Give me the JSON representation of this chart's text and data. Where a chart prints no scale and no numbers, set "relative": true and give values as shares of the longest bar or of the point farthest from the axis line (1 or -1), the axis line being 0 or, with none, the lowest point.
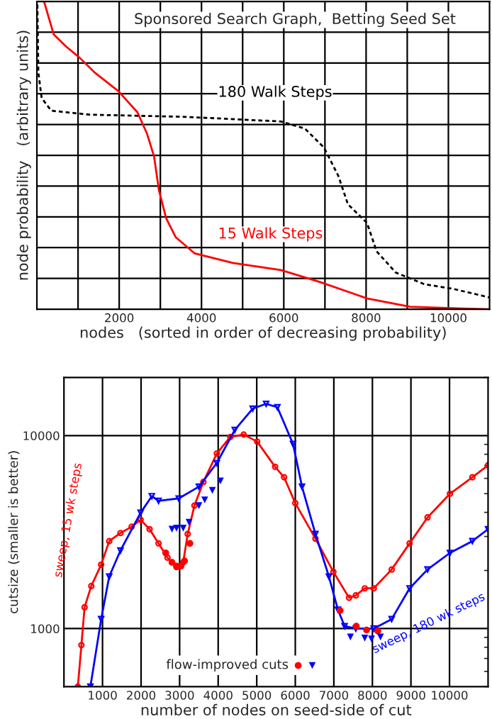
{
  "chart_data": [
    {
      "type": "line",
      "title": "Sponsored Search Graph,  Betting Seed Set",
      "xlabel": "nodes   (sorted in order of decreasing probability)",
      "ylabel": "node probability   (arbitrary units)",
      "relative": true,
      "grid": true,
      "legend": false,
      "xlim": [
        0,
        11000
      ],
      "xticks": [
        {
          "value": 1000,
          "label": null
        },
        2000,
        {
          "value": 3000,
          "label": null
        },
        4000,
        {
          "value": 5000,
          "label": null
        },
        6000,
        {
          "value": 7000,
          "label": null
        },
        8000,
        {
          "value": 9000,
          "label": null
        },
        10000
      ],
      "series": [
        {
          "name": "15 Walk Steps",
          "color": "#ff0000",
          "line_style": "solid",
          "x": [
            174,
            407,
            698,
            1047,
            1395,
            1977,
            2442,
            2674,
            2849,
            2965,
            3140,
            3372,
            3837,
            4767,
            5930,
            6860,
            8023,
            9070,
            10349,
            11000
          ],
          "values": [
            1.0,
            0.893,
            0.855,
            0.816,
            0.77,
            0.709,
            0.64,
            0.571,
            0.495,
            0.387,
            0.296,
            0.234,
            0.181,
            0.15,
            0.127,
            0.089,
            0.035,
            0.008,
            0.002,
            0.0
          ]
        },
        {
          "name": "180 Walk Steps",
          "color": "#000000",
          "line_style": "dashed",
          "x": [
            12,
            35,
            116,
            349,
            1279,
            3605,
            5930,
            6512,
            6977,
            7326,
            7558,
            8023,
            8256,
            8721,
            9419,
            10116,
            11000
          ],
          "values": [
            0.99,
            0.77,
            0.686,
            0.645,
            0.632,
            0.625,
            0.61,
            0.587,
            0.525,
            0.433,
            0.341,
            0.28,
            0.188,
            0.119,
            0.081,
            0.066,
            0.038
          ]
        }
      ]
    },
    {
      "type": "line",
      "xlabel": "number of nodes on seed-side of cut",
      "ylabel": "cutsize (smaller is better)",
      "log": "y",
      "grid": true,
      "legend": "bottom",
      "xlim": [
        0,
        11000
      ],
      "ylim": [
        500,
        20000
      ],
      "xticks": [
        1000,
        2000,
        3000,
        4000,
        5000,
        6000,
        7000,
        8000,
        9000,
        10000
      ],
      "yticks": [
        1000,
        10000
      ],
      "series": [
        {
          "name": "sweep, 15 wk steps",
          "color": "#ff0000",
          "marker": "circle",
          "x": [
            360,
            453,
            535,
            709,
            965,
            1174,
            1465,
            1756,
            1988,
            2221,
            2453,
            2686,
            2919,
            3093,
            3209,
            3384,
            3616,
            3965,
            4314,
            4663,
            5012,
            5477,
            5709,
            6000,
            6523,
            6988,
            7395,
            7570,
            7802,
            8035,
            8500,
            8965,
            9430,
            10012,
            10593,
            11000
          ],
          "values": [
            500,
            821,
            1289,
            1662,
            2143,
            2838,
            3126,
            3370,
            3663,
            3271,
            2762,
            2331,
            2083,
            2204,
            3090,
            4334,
            5750,
            8074,
            9836,
            10120,
            9300,
            6887,
            6081,
            4464,
            2923,
            1968,
            1443,
            1485,
            1616,
            1616,
            2023,
            2762,
            3767,
            4998,
            6081,
            7015
          ]
        },
        {
          "name": "sweep, 180 wk steps",
          "color": "#0000ff",
          "marker": "triangle",
          "x": [
            686,
            965,
            1174,
            1465,
            1988,
            2279,
            2453,
            2977,
            3500,
            3965,
            4430,
            4895,
            5244,
            5535,
            5942,
            6174,
            6523,
            6872,
            7105,
            7279,
            7570,
            8035,
            8500,
            8965,
            9430,
            10012,
            10593,
            11000
          ],
          "values": [
            500,
            1119,
            1861,
            2536,
            3981,
            4853,
            4590,
            4721,
            5436,
            7208,
            10690,
            13790,
            14600,
            14030,
            9040,
            5436,
            3090,
            1861,
            1253,
            1029,
            1000,
            1000,
            1119,
            1616,
            2023,
            2466,
            2838,
            3273
          ]
        },
        {
          "type": "scatter",
          "name": "flow-improved cuts",
          "color": "#ff0000",
          "marker": "circle",
          "x": [
            2639,
            2802,
            2919,
            3035,
            3128,
            3267,
            7163,
            7581,
            7849,
            8140
          ],
          "values": [
            2466,
            2202,
            2107,
            2107,
            2240,
            2762,
            1239,
            1028,
            983,
            972
          ]
        },
        {
          "type": "scatter",
          "color": "#0000ff",
          "marker": "triangle",
          "x": [
            2802,
            2919,
            3093,
            3244,
            3500,
            3651,
            3849,
            4058,
            7430,
            7802,
            7977,
            8209
          ],
          "values": [
            3273,
            3312,
            3312,
            3556,
            4334,
            4640,
            5200,
            5820,
            904,
            893,
            883,
            904
          ]
        }
      ]
    }
  ]
}
